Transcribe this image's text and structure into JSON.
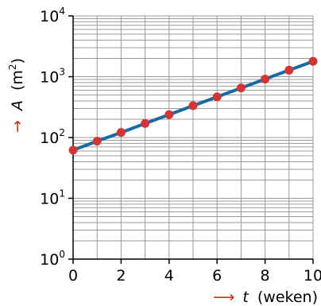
{
  "chart_data": {
    "type": "line",
    "y_scale": "log",
    "grid": true,
    "colors": {
      "line": "#1a6aa0",
      "marker": "#d23535",
      "arrow": "#e0251f",
      "grid": "#9a9a9a",
      "axis": "#000000"
    },
    "x_axis": {
      "symbol": "t",
      "unit": "(weken)",
      "range": [
        0,
        10
      ],
      "ticks": [
        0,
        2,
        4,
        6,
        8,
        10
      ],
      "tick_labels": [
        "0",
        "2",
        "4",
        "6",
        "8",
        "10"
      ]
    },
    "y_axis": {
      "symbol": "A",
      "unit_base": "(m",
      "unit_exp": "2",
      "unit_close": ")",
      "range": [
        1,
        10000
      ],
      "ticks": [
        {
          "base": "10",
          "exp": "0",
          "value": 1
        },
        {
          "base": "10",
          "exp": "1",
          "value": 10
        },
        {
          "base": "10",
          "exp": "2",
          "value": 100
        },
        {
          "base": "10",
          "exp": "3",
          "value": 1000
        },
        {
          "base": "10",
          "exp": "4",
          "value": 10000
        }
      ]
    },
    "series": [
      {
        "x": [
          0,
          1,
          2,
          3,
          4,
          5,
          6,
          7,
          8,
          9,
          10
        ],
        "y": [
          62,
          87,
          121,
          170,
          238,
          333,
          466,
          653,
          914,
          1280,
          1790
        ]
      }
    ]
  }
}
